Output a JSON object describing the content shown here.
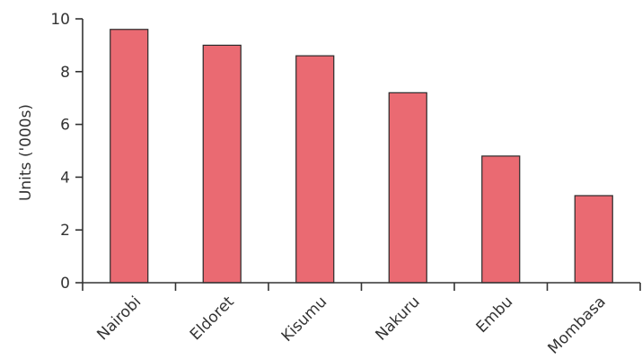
{
  "chart_data": {
    "type": "bar",
    "categories": [
      "Nairobi",
      "Eldoret",
      "Kisumu",
      "Nakuru",
      "Embu",
      "Mombasa"
    ],
    "values": [
      9.6,
      9.0,
      8.6,
      7.2,
      4.8,
      3.3
    ],
    "ylabel": "Units ('000s)",
    "xlabel": "",
    "ylim": [
      0,
      10
    ],
    "yticks": [
      "0",
      "2",
      "4",
      "6",
      "8",
      "10"
    ],
    "grid": false,
    "bar_color": "#ea6a72",
    "bar_edge_color": "#2a2a2a",
    "axis_color": "#333333"
  }
}
